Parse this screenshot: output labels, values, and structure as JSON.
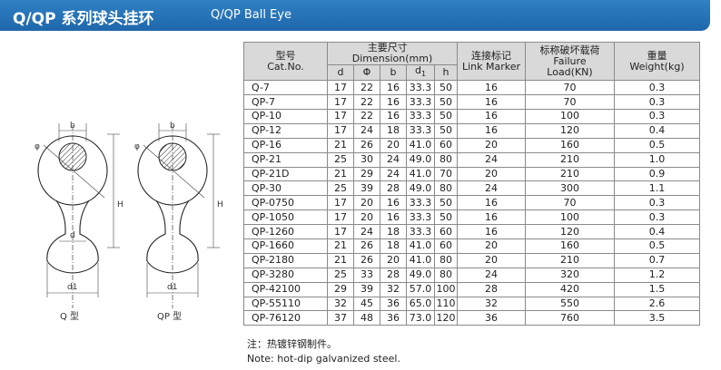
{
  "header": {
    "title": "Q/QP 系列球头挂环",
    "subtitle": "Q/QP Ball Eye"
  },
  "drawing": {
    "labels": {
      "phi": "φ",
      "b": "b",
      "h": "H",
      "d": "d",
      "d1": "d1"
    },
    "captions": [
      "Q 型",
      "QP 型"
    ]
  },
  "table": {
    "headers": {
      "cat_cn": "型号",
      "cat_en": "Cat.No.",
      "dim_cn": "主要尺寸",
      "dim_en": "Dimension(mm)",
      "link_cn": "连接标记",
      "link_en": "Link Marker",
      "load_cn": "标称破坏载荷",
      "load_en1": "Failure",
      "load_en2": "Load(KN)",
      "weight_cn": "重量",
      "weight_en": "Weight(kg)",
      "sub": [
        "d",
        "Φ",
        "b",
        "d",
        "1",
        "h"
      ]
    },
    "rows": [
      [
        "Q-7",
        "17",
        "22",
        "16",
        "33.3",
        "50",
        "16",
        "70",
        "0.3"
      ],
      [
        "QP-7",
        "17",
        "22",
        "16",
        "33.3",
        "50",
        "16",
        "70",
        "0.3"
      ],
      [
        "QP-10",
        "17",
        "22",
        "16",
        "33.3",
        "50",
        "16",
        "100",
        "0.3"
      ],
      [
        "QP-12",
        "17",
        "24",
        "18",
        "33.3",
        "50",
        "16",
        "120",
        "0.4"
      ],
      [
        "QP-16",
        "21",
        "26",
        "20",
        "41.0",
        "60",
        "20",
        "160",
        "0.5"
      ],
      [
        "QP-21",
        "25",
        "30",
        "24",
        "49.0",
        "80",
        "24",
        "210",
        "1.0"
      ],
      [
        "QP-21D",
        "21",
        "29",
        "24",
        "41.0",
        "70",
        "20",
        "210",
        "0.9"
      ],
      [
        "QP-30",
        "25",
        "39",
        "28",
        "49.0",
        "80",
        "24",
        "300",
        "1.1"
      ],
      [
        "QP-0750",
        "17",
        "20",
        "16",
        "33.3",
        "50",
        "16",
        "70",
        "0.3"
      ],
      [
        "QP-1050",
        "17",
        "20",
        "16",
        "33.3",
        "50",
        "16",
        "100",
        "0.3"
      ],
      [
        "QP-1260",
        "17",
        "24",
        "18",
        "33.3",
        "60",
        "16",
        "120",
        "0.4"
      ],
      [
        "QP-1660",
        "21",
        "26",
        "18",
        "41.0",
        "60",
        "20",
        "160",
        "0.5"
      ],
      [
        "QP-2180",
        "21",
        "26",
        "20",
        "41.0",
        "80",
        "20",
        "210",
        "0.7"
      ],
      [
        "QP-3280",
        "25",
        "33",
        "28",
        "49.0",
        "80",
        "24",
        "320",
        "1.2"
      ],
      [
        "QP-42100",
        "29",
        "39",
        "32",
        "57.0",
        "100",
        "28",
        "420",
        "1.5"
      ],
      [
        "QP-55110",
        "32",
        "45",
        "36",
        "65.0",
        "110",
        "32",
        "550",
        "2.6"
      ],
      [
        "QP-76120",
        "37",
        "48",
        "36",
        "73.0",
        "120",
        "36",
        "760",
        "3.5"
      ]
    ]
  },
  "note": {
    "cn": "注：热镀锌钢制件。",
    "en": "Note: hot-dip galvanized steel."
  }
}
